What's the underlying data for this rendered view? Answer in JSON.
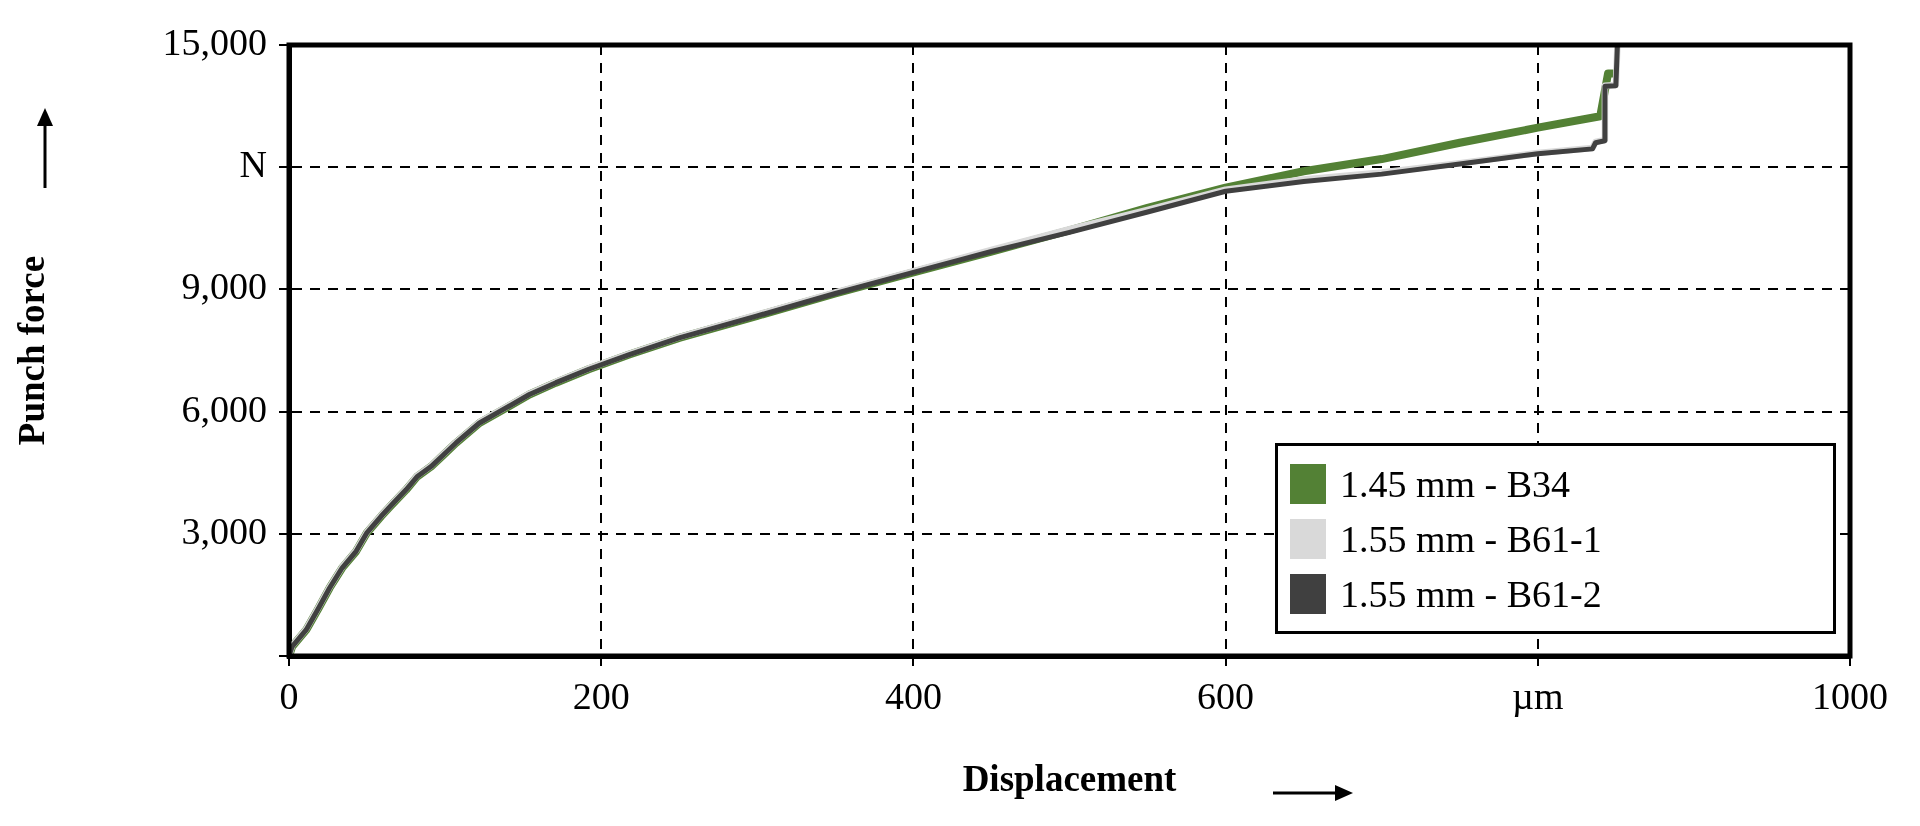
{
  "chart_data": {
    "type": "line",
    "xlabel": "Displacement",
    "ylabel": "Punch force",
    "xlim": [
      0,
      1000
    ],
    "xticks": [
      0,
      200,
      400,
      600,
      {
        "value": 800,
        "label": "µm"
      },
      1000
    ],
    "ylim": [
      0,
      15000
    ],
    "yticks": [
      {
        "value": 0,
        "label": null
      },
      {
        "value": 3000,
        "label": "3,000"
      },
      {
        "value": 6000,
        "label": "6,000"
      },
      {
        "value": 9000,
        "label": "9,000"
      },
      {
        "value": 12000,
        "label": "N"
      },
      {
        "value": 15000,
        "label": "15,000"
      }
    ],
    "grid": true,
    "legend": "bottom right",
    "marker": "none",
    "line_style": "solid",
    "series": [
      {
        "name": "1.45 mm - B34",
        "color": "#538135",
        "x": [
          0,
          2,
          11,
          19,
          26,
          34,
          43,
          50,
          59,
          66,
          75,
          82,
          91,
          99,
          107,
          122,
          139,
          154,
          171,
          192,
          218,
          250,
          300,
          350,
          400,
          450,
          500,
          550,
          600,
          650,
          700,
          750,
          800,
          840,
          845,
          848
        ],
        "values": [
          0,
          230,
          640,
          1180,
          1670,
          2160,
          2570,
          3030,
          3430,
          3720,
          4080,
          4400,
          4650,
          4940,
          5230,
          5720,
          6090,
          6420,
          6710,
          7040,
          7400,
          7810,
          8350,
          8900,
          9420,
          9930,
          10450,
          11000,
          11500,
          11900,
          12200,
          12600,
          12970,
          13250,
          14300,
          14300
        ]
      },
      {
        "name": "1.55 mm - B61-1",
        "color": "#d9d9d9",
        "x": [
          0,
          2,
          11,
          19,
          26,
          34,
          43,
          50,
          59,
          66,
          75,
          82,
          91,
          99,
          107,
          122,
          139,
          154,
          171,
          192,
          218,
          250,
          300,
          350,
          400,
          450,
          500,
          550,
          600,
          650,
          700,
          750,
          800,
          835,
          837,
          843,
          843,
          850,
          851
        ],
        "values": [
          0,
          250,
          660,
          1200,
          1690,
          2180,
          2590,
          3050,
          3450,
          3740,
          4100,
          4420,
          4670,
          4960,
          5250,
          5740,
          6110,
          6440,
          6730,
          7060,
          7420,
          7830,
          8380,
          8930,
          9450,
          9970,
          10480,
          10950,
          11450,
          11700,
          11870,
          12100,
          12350,
          12470,
          12620,
          12670,
          14000,
          14020,
          15000
        ]
      },
      {
        "name": "1.55 mm - B61-2",
        "color": "#404040",
        "x": [
          0,
          2,
          11,
          19,
          26,
          34,
          43,
          50,
          59,
          66,
          75,
          82,
          91,
          99,
          107,
          122,
          139,
          154,
          171,
          192,
          218,
          250,
          300,
          350,
          400,
          450,
          500,
          550,
          600,
          650,
          700,
          750,
          800,
          835,
          837,
          843,
          843,
          850,
          851
        ],
        "values": [
          0,
          230,
          640,
          1180,
          1670,
          2160,
          2570,
          3030,
          3430,
          3720,
          4080,
          4400,
          4650,
          4940,
          5230,
          5720,
          6090,
          6420,
          6710,
          7040,
          7400,
          7810,
          8350,
          8900,
          9420,
          9930,
          10400,
          10900,
          11410,
          11650,
          11830,
          12080,
          12330,
          12450,
          12600,
          12650,
          13990,
          14000,
          15000
        ]
      }
    ]
  }
}
